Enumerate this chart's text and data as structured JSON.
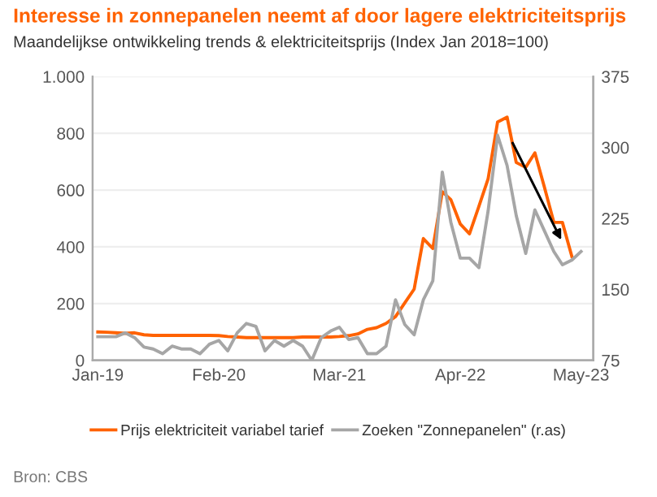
{
  "chart_data": {
    "type": "line",
    "title": "Interesse in zonnepanelen neemt af door lagere elektriciteitsprijs",
    "subtitle": "Maandelijkse ontwikkeling trends & elektriciteitsprijs (Index Jan 2018=100)",
    "annotations": [
      "Bron: CBS"
    ],
    "x": [
      "2019-01",
      "2019-02",
      "2019-03",
      "2019-04",
      "2019-05",
      "2019-06",
      "2019-07",
      "2019-08",
      "2019-09",
      "2019-10",
      "2019-11",
      "2019-12",
      "2020-01",
      "2020-02",
      "2020-03",
      "2020-04",
      "2020-05",
      "2020-06",
      "2020-07",
      "2020-08",
      "2020-09",
      "2020-10",
      "2020-11",
      "2020-12",
      "2021-01",
      "2021-02",
      "2021-03",
      "2021-04",
      "2021-05",
      "2021-06",
      "2021-07",
      "2021-08",
      "2021-09",
      "2021-10",
      "2021-11",
      "2021-12",
      "2022-01",
      "2022-02",
      "2022-03",
      "2022-04",
      "2022-05",
      "2022-06",
      "2022-07",
      "2022-08",
      "2022-09",
      "2022-10",
      "2022-11",
      "2022-12",
      "2023-01",
      "2023-02",
      "2023-03",
      "2023-04",
      "2023-05"
    ],
    "series": [
      {
        "name": "Prijs elektriciteit variabel tarief",
        "color": "#ff6200",
        "values": [
          100,
          99,
          97,
          95,
          97,
          90,
          88,
          88,
          88,
          88,
          88,
          88,
          88,
          87,
          84,
          82,
          80,
          80,
          80,
          80,
          80,
          80,
          82,
          82,
          82,
          82,
          84,
          87,
          93,
          109,
          115,
          130,
          154,
          202,
          251,
          429,
          394,
          594,
          566,
          480,
          446,
          543,
          640,
          840,
          857,
          697,
          680,
          731,
          611,
          486,
          486,
          366,
          null
        ]
      },
      {
        "name": "Zoeken \"Zonnepanelen\" (r.as)",
        "color": "#a6a6a6",
        "axis": "y2",
        "values": [
          100,
          100,
          100,
          104,
          99,
          89,
          87,
          82,
          90,
          87,
          87,
          82,
          92,
          96,
          85,
          104,
          114,
          111,
          85,
          96,
          90,
          96,
          90,
          75,
          99,
          106,
          110,
          97,
          99,
          82,
          82,
          90,
          139,
          113,
          102,
          139,
          159,
          274,
          221,
          183,
          183,
          173,
          233,
          313,
          281,
          228,
          188,
          234,
          212,
          190,
          176,
          181,
          190
        ]
      }
    ],
    "xlim": [
      "2018-12-15",
      "2023-06-10"
    ],
    "xticks": [
      {
        "value": "2019-01",
        "label": "Jan-19"
      },
      {
        "value": "2020-02",
        "label": "Feb-20"
      },
      {
        "value": "2021-03",
        "label": "Mar-21"
      },
      {
        "value": "2022-04",
        "label": "Apr-22"
      },
      {
        "value": "2023-05",
        "label": "May-23"
      }
    ],
    "ylim": [
      0,
      1000
    ],
    "yticks": [
      0,
      200,
      400,
      600,
      800,
      {
        "value": 1000,
        "label": "1.000"
      }
    ],
    "y2lim": [
      75,
      375
    ],
    "y2ticks": [
      75,
      150,
      225,
      300,
      375
    ],
    "grid": "y",
    "legend": "bottom",
    "line_style": "solid",
    "marker": "none"
  }
}
